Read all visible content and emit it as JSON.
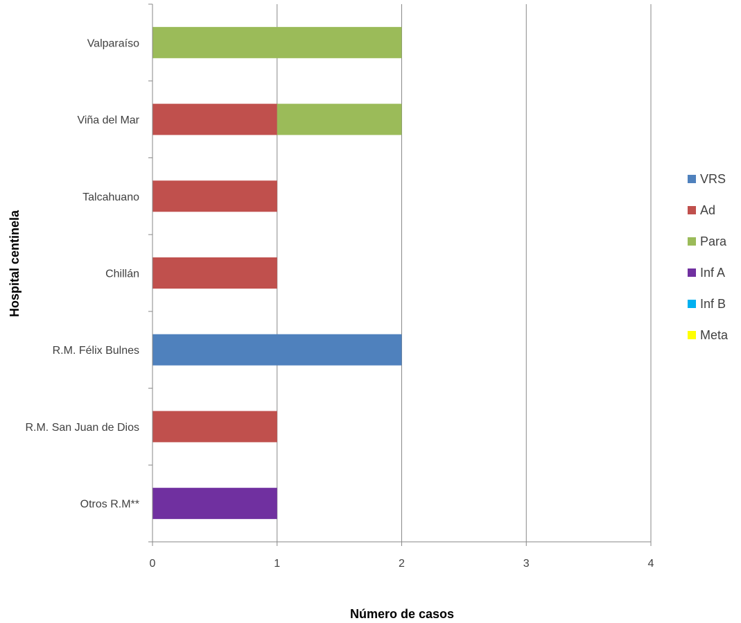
{
  "chart_data": {
    "type": "bar",
    "orientation": "horizontal",
    "stacked": true,
    "categories": [
      "Valparaíso",
      "Viña del Mar",
      "Talcahuano",
      "Chillán",
      "R.M. Félix Bulnes",
      "R.M. San Juan de Dios",
      "Otros R.M**"
    ],
    "series": [
      {
        "name": "VRS",
        "color": "#4F81BD",
        "values": [
          0,
          0,
          0,
          0,
          2,
          0,
          0
        ]
      },
      {
        "name": "Ad",
        "color": "#C0504D",
        "values": [
          0,
          1,
          1,
          1,
          0,
          1,
          0
        ]
      },
      {
        "name": "Para",
        "color": "#9BBB59",
        "values": [
          2,
          1,
          0,
          0,
          0,
          0,
          0
        ]
      },
      {
        "name": "Inf A",
        "color": "#7030A0",
        "values": [
          0,
          0,
          0,
          0,
          0,
          0,
          1
        ]
      },
      {
        "name": "Inf B",
        "color": "#00B0F0",
        "values": [
          0,
          0,
          0,
          0,
          0,
          0,
          0
        ]
      },
      {
        "name": "Meta",
        "color": "#FFFF00",
        "values": [
          0,
          0,
          0,
          0,
          0,
          0,
          0
        ]
      }
    ],
    "xlabel": "Número de casos",
    "ylabel": "Hospital centinela",
    "xlim": [
      0,
      4
    ],
    "xticks": [
      "0",
      "1",
      "2",
      "3",
      "4"
    ],
    "grid": true,
    "legend_position": "right"
  }
}
